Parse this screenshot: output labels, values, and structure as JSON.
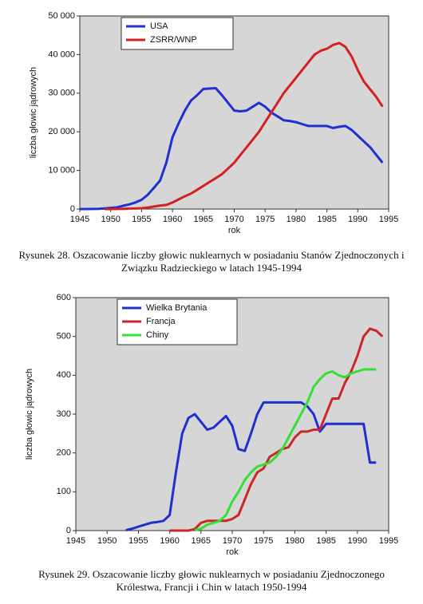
{
  "chart_data": [
    {
      "type": "line",
      "caption": "Rysunek 28. Oszacowanie liczby głowic nuklearnych w posiadaniu Stanów Zjednoczonych i Związku Radzieckiego w latach 1945-1994",
      "xlabel": "rok",
      "ylabel": "liczba głowic jądrowych",
      "x": [
        1945,
        1946,
        1947,
        1948,
        1949,
        1950,
        1951,
        1952,
        1953,
        1954,
        1955,
        1956,
        1957,
        1958,
        1959,
        1960,
        1961,
        1962,
        1963,
        1964,
        1965,
        1966,
        1967,
        1968,
        1969,
        1970,
        1971,
        1972,
        1973,
        1974,
        1975,
        1976,
        1977,
        1978,
        1979,
        1980,
        1981,
        1982,
        1983,
        1984,
        1985,
        1986,
        1987,
        1988,
        1989,
        1990,
        1991,
        1992,
        1993,
        1994
      ],
      "series": [
        {
          "name": "USA",
          "color": "#1f2fd0",
          "values": [
            2,
            9,
            13,
            50,
            170,
            300,
            440,
            840,
            1200,
            1700,
            2400,
            3700,
            5500,
            7400,
            12000,
            18600,
            22200,
            25500,
            28100,
            29500,
            31100,
            31200,
            31300,
            29500,
            27500,
            25500,
            25300,
            25500,
            26500,
            27500,
            26500,
            25000,
            24000,
            23000,
            22800,
            22500,
            22000,
            21500,
            21500,
            21500,
            21500,
            21000,
            21300,
            21500,
            20500,
            19000,
            17500,
            16000,
            14000,
            12000
          ]
        },
        {
          "name": "ZSRR/WNP",
          "color": "#d42020",
          "values": [
            null,
            null,
            null,
            null,
            1,
            5,
            25,
            50,
            120,
            150,
            200,
            400,
            650,
            900,
            1050,
            1700,
            2500,
            3300,
            4000,
            5000,
            6000,
            7000,
            8000,
            9000,
            10500,
            12000,
            14000,
            16000,
            18000,
            20000,
            22500,
            25000,
            27500,
            30000,
            32000,
            34000,
            36000,
            38000,
            40000,
            41000,
            41500,
            42500,
            43000,
            42000,
            39500,
            36000,
            33000,
            31000,
            29000,
            26500
          ]
        }
      ],
      "xlim": [
        1945,
        1995
      ],
      "xticks": [
        1945,
        1950,
        1955,
        1960,
        1965,
        1970,
        1975,
        1980,
        1985,
        1990,
        1995
      ],
      "ylim": [
        0,
        50000
      ],
      "yticks": [
        0,
        {
          "value": 10000,
          "label": "10 000"
        },
        {
          "value": 20000,
          "label": "20 000"
        },
        {
          "value": 30000,
          "label": "30 000"
        },
        {
          "value": 40000,
          "label": "40 000"
        },
        {
          "value": 50000,
          "label": "50 000"
        }
      ]
    },
    {
      "type": "line",
      "caption": "Rysunek 29. Oszacowanie liczby głowic nuklearnych w posiadaniu Zjednoczonego Królestwa, Francji i Chin w latach 1950-1994",
      "xlabel": "rok",
      "ylabel": "liczba głowic jądrowych",
      "x": [
        1953,
        1954,
        1955,
        1956,
        1957,
        1958,
        1959,
        1960,
        1961,
        1962,
        1963,
        1964,
        1965,
        1966,
        1967,
        1968,
        1969,
        1970,
        1971,
        1972,
        1973,
        1974,
        1975,
        1976,
        1977,
        1978,
        1979,
        1980,
        1981,
        1982,
        1983,
        1984,
        1985,
        1986,
        1987,
        1988,
        1989,
        1990,
        1991,
        1992,
        1993,
        1994
      ],
      "series": [
        {
          "name": "Wielka Brytania",
          "color": "#1f2fd0",
          "values": [
            1,
            5,
            10,
            15,
            20,
            22,
            25,
            40,
            150,
            250,
            290,
            300,
            280,
            260,
            265,
            280,
            295,
            270,
            210,
            205,
            250,
            300,
            330,
            330,
            330,
            330,
            330,
            330,
            330,
            320,
            300,
            255,
            275,
            275,
            275,
            275,
            275,
            275,
            275,
            175,
            175,
            null
          ]
        },
        {
          "name": "Francja",
          "color": "#c82828",
          "values": [
            null,
            null,
            null,
            null,
            null,
            null,
            null,
            0,
            0,
            0,
            0,
            4,
            20,
            25,
            25,
            25,
            25,
            30,
            40,
            80,
            120,
            150,
            160,
            190,
            200,
            210,
            215,
            240,
            255,
            255,
            260,
            260,
            300,
            340,
            340,
            380,
            410,
            450,
            500,
            520,
            515,
            500
          ]
        },
        {
          "name": "Chiny",
          "color": "#33e033",
          "values": [
            null,
            null,
            null,
            null,
            null,
            null,
            null,
            null,
            null,
            null,
            null,
            1,
            5,
            15,
            20,
            25,
            40,
            75,
            100,
            130,
            150,
            165,
            170,
            175,
            190,
            210,
            240,
            270,
            300,
            330,
            370,
            390,
            405,
            410,
            400,
            395,
            405,
            410,
            415,
            415,
            415,
            null
          ]
        }
      ],
      "xlim": [
        1945,
        1995
      ],
      "xticks": [
        1945,
        1950,
        1955,
        1960,
        1965,
        1970,
        1975,
        1980,
        1985,
        1990,
        1995
      ],
      "ylim": [
        0,
        600
      ],
      "yticks": [
        0,
        100,
        200,
        300,
        400,
        500,
        600
      ]
    }
  ]
}
